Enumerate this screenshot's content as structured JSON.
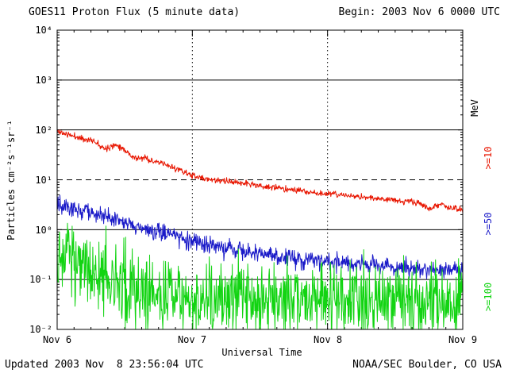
{
  "header": {
    "title": "GOES11 Proton Flux (5 minute data)",
    "begin": "Begin: 2003 Nov 6 0000 UTC"
  },
  "footer": {
    "updated": "Updated 2003 Nov  8 23:56:04 UTC",
    "source": "NOAA/SEC Boulder, CO USA"
  },
  "chart_data": {
    "type": "line",
    "title": "GOES11 Proton Flux (5 minute data)",
    "xlabel": "Universal Time",
    "ylabel": "Particles cm⁻²s⁻¹sr⁻¹",
    "right_axis_label": "MeV",
    "x_ticks": [
      "Nov 6",
      "Nov 7",
      "Nov 8",
      "Nov 9"
    ],
    "y_ticks": [
      "10⁴",
      "10³",
      "10²",
      "10¹",
      "10⁰",
      "10⁻¹",
      "10⁻²"
    ],
    "y_exponents": [
      4,
      3,
      2,
      1,
      0,
      -1,
      -2
    ],
    "ylim": [
      0.01,
      10000
    ],
    "x_days": 3,
    "grid": {
      "solid_y_exponents": [
        3,
        2,
        0,
        -1
      ],
      "dashed_y_exponents": [
        1
      ],
      "dotted_x_days": [
        1,
        2
      ]
    },
    "legend_position": "right",
    "series": [
      {
        "name": ">=10",
        "color": "#e81500",
        "units": "MeV",
        "noise_sigma": 0.07,
        "seed": 11,
        "points": [
          [
            0,
            95
          ],
          [
            0.08,
            80
          ],
          [
            0.15,
            72
          ],
          [
            0.2,
            65
          ],
          [
            0.25,
            62
          ],
          [
            0.3,
            55
          ],
          [
            0.35,
            42
          ],
          [
            0.4,
            48
          ],
          [
            0.45,
            50
          ],
          [
            0.5,
            40
          ],
          [
            0.55,
            30
          ],
          [
            0.6,
            26
          ],
          [
            0.65,
            28
          ],
          [
            0.7,
            24
          ],
          [
            0.75,
            22
          ],
          [
            0.8,
            20
          ],
          [
            0.85,
            18
          ],
          [
            0.9,
            16
          ],
          [
            0.95,
            14
          ],
          [
            1.0,
            12
          ],
          [
            1.05,
            11
          ],
          [
            1.1,
            10.5
          ],
          [
            1.15,
            10
          ],
          [
            1.2,
            9.5
          ],
          [
            1.3,
            9
          ],
          [
            1.4,
            8.5
          ],
          [
            1.5,
            7.5
          ],
          [
            1.6,
            7
          ],
          [
            1.7,
            6.5
          ],
          [
            1.8,
            6
          ],
          [
            1.9,
            5.5
          ],
          [
            2.0,
            5.2
          ],
          [
            2.1,
            5
          ],
          [
            2.2,
            4.6
          ],
          [
            2.3,
            4.4
          ],
          [
            2.4,
            4.2
          ],
          [
            2.5,
            4.0
          ],
          [
            2.55,
            3.6
          ],
          [
            2.6,
            3.8
          ],
          [
            2.65,
            3.4
          ],
          [
            2.7,
            3.2
          ],
          [
            2.75,
            2.6
          ],
          [
            2.8,
            3.0
          ],
          [
            2.85,
            3.2
          ],
          [
            2.9,
            2.8
          ],
          [
            2.95,
            2.6
          ],
          [
            3.0,
            2.4
          ]
        ]
      },
      {
        "name": ">=50",
        "color": "#1a1ac8",
        "units": "MeV",
        "noise_sigma": 0.2,
        "seed": 52,
        "points": [
          [
            0,
            3.2
          ],
          [
            0.1,
            2.8
          ],
          [
            0.2,
            2.4
          ],
          [
            0.3,
            2.0
          ],
          [
            0.4,
            1.7
          ],
          [
            0.5,
            1.45
          ],
          [
            0.6,
            1.2
          ],
          [
            0.7,
            1.0
          ],
          [
            0.8,
            0.85
          ],
          [
            0.9,
            0.7
          ],
          [
            1.0,
            0.58
          ],
          [
            1.1,
            0.5
          ],
          [
            1.2,
            0.44
          ],
          [
            1.3,
            0.4
          ],
          [
            1.4,
            0.36
          ],
          [
            1.5,
            0.33
          ],
          [
            1.6,
            0.3
          ],
          [
            1.7,
            0.28
          ],
          [
            1.8,
            0.26
          ],
          [
            1.9,
            0.25
          ],
          [
            2.0,
            0.23
          ],
          [
            2.2,
            0.21
          ],
          [
            2.4,
            0.19
          ],
          [
            2.6,
            0.17
          ],
          [
            2.8,
            0.16
          ],
          [
            3.0,
            0.15
          ]
        ]
      },
      {
        "name": ">=100",
        "color": "#12d412",
        "units": "MeV",
        "noise_sigma": 0.85,
        "seed": 103,
        "points": [
          [
            0,
            0.38
          ],
          [
            0.1,
            0.28
          ],
          [
            0.2,
            0.2
          ],
          [
            0.3,
            0.14
          ],
          [
            0.4,
            0.1
          ],
          [
            0.5,
            0.08
          ],
          [
            0.6,
            0.065
          ],
          [
            0.7,
            0.055
          ],
          [
            0.8,
            0.05
          ],
          [
            1.0,
            0.045
          ],
          [
            1.2,
            0.042
          ],
          [
            1.5,
            0.04
          ],
          [
            2.0,
            0.038
          ],
          [
            2.5,
            0.038
          ],
          [
            3.0,
            0.036
          ]
        ]
      }
    ]
  }
}
